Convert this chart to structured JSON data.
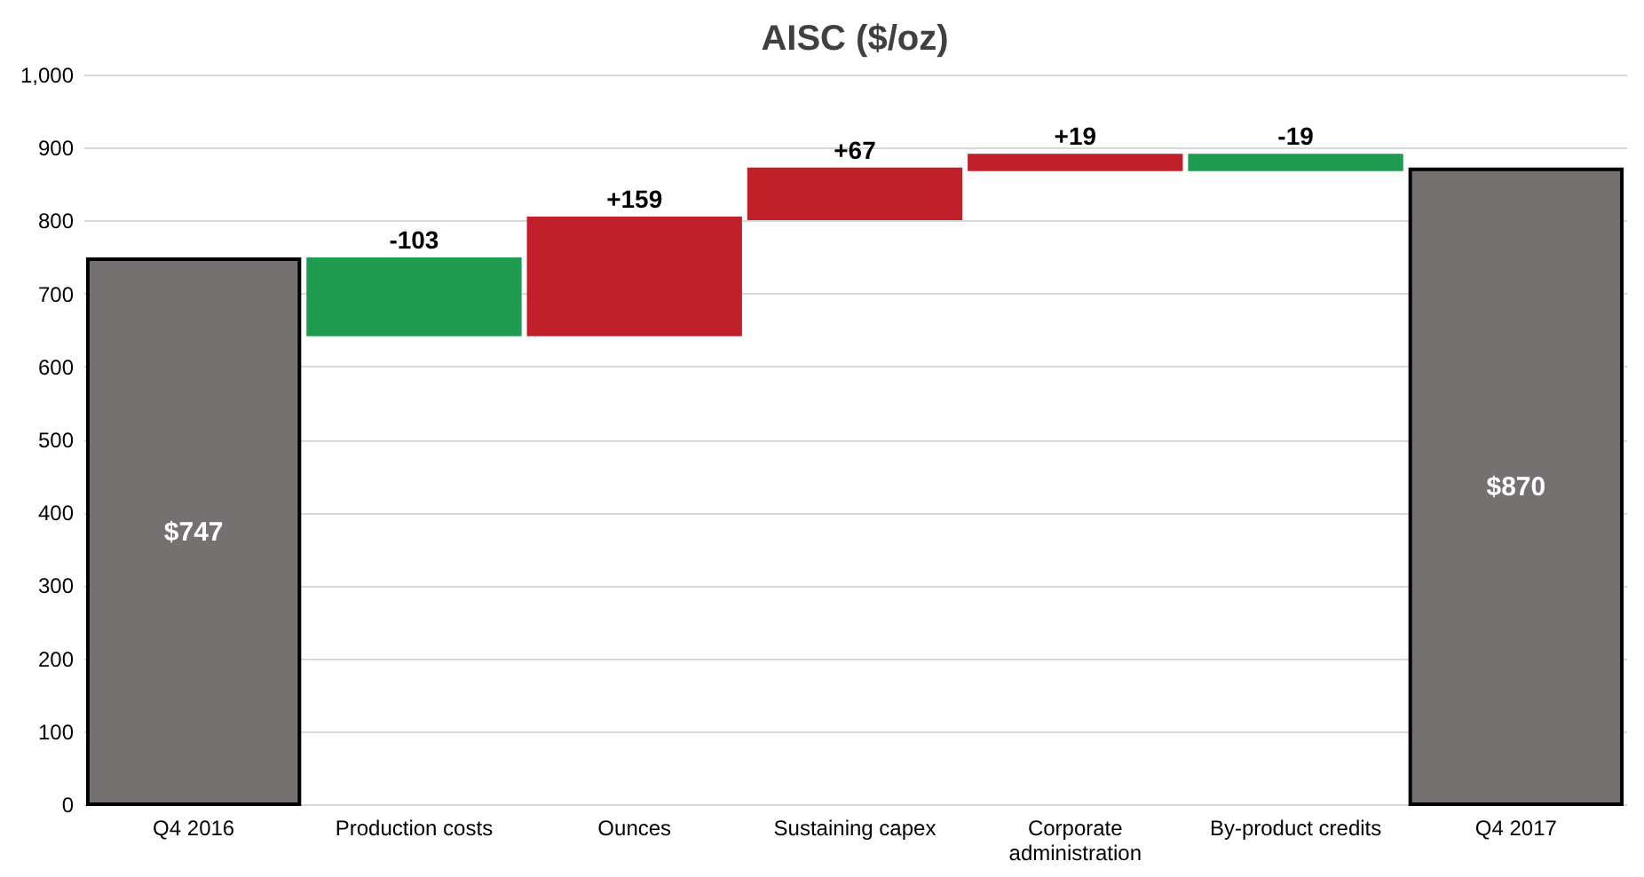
{
  "chart_data": {
    "type": "bar",
    "title": "AISC ($/oz)",
    "categories": [
      "Q4 2016",
      "Production costs",
      "Ounces",
      "Sustaining capex",
      "Corporate administration",
      "By-product credits",
      "Q4 2017"
    ],
    "values": [
      747,
      -103,
      159,
      67,
      19,
      -19,
      870
    ],
    "base": [
      0,
      747,
      644,
      803,
      870,
      889,
      0
    ],
    "colors": [
      "#767171",
      "#1e9b4f",
      "#c0202a",
      "#c0202a",
      "#c0202a",
      "#1e9b4f",
      "#767171"
    ],
    "value_labels": [
      "$747",
      "-103",
      "+159",
      "+67",
      "+19",
      "-19",
      "$870"
    ],
    "ylim": [
      0,
      1000
    ],
    "yticks": [
      0,
      100,
      200,
      300,
      400,
      500,
      600,
      700,
      800,
      900,
      {
        "value": 1000,
        "label": "1,000"
      }
    ],
    "grid": "y"
  }
}
